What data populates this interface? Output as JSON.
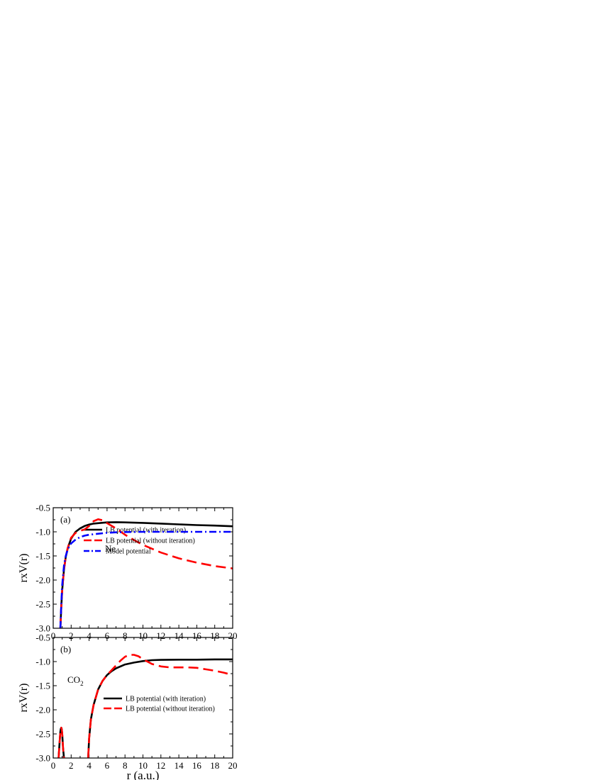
{
  "chart_data": [
    {
      "type": "line",
      "panel_label": "(a)",
      "annotation": "Ne",
      "xlabel": "",
      "ylabel": "rxV(r)",
      "xlim": [
        0,
        20
      ],
      "ylim": [
        -3.0,
        -0.5
      ],
      "xticks": [
        "0",
        "2",
        "4",
        "6",
        "8",
        "10",
        "12",
        "14",
        "16",
        "18",
        "20"
      ],
      "yticks": [
        "-0.5",
        "-1.0",
        "-1.5",
        "-2.0",
        "-2.5",
        "-3.0"
      ],
      "legend_position": "center-left",
      "series": [
        {
          "name": "LB potential (with iteration)",
          "color": "#000000",
          "style": "solid",
          "x": [
            0.8,
            0.9,
            1.0,
            1.2,
            1.4,
            1.6,
            1.8,
            2.0,
            2.5,
            3.0,
            3.5,
            4.0,
            4.5,
            5.0,
            6.0,
            7.0,
            8.0,
            10.0,
            12.0,
            14.0,
            16.0,
            18.0,
            20.0
          ],
          "y": [
            -3.0,
            -2.55,
            -2.2,
            -1.78,
            -1.52,
            -1.36,
            -1.24,
            -1.14,
            -1.0,
            -0.93,
            -0.88,
            -0.85,
            -0.83,
            -0.82,
            -0.805,
            -0.8,
            -0.805,
            -0.815,
            -0.83,
            -0.845,
            -0.86,
            -0.87,
            -0.885
          ]
        },
        {
          "name": "LB potential (without iteration)",
          "color": "#ff0000",
          "style": "dashed",
          "x": [
            0.8,
            0.9,
            1.0,
            1.2,
            1.4,
            1.6,
            1.8,
            2.0,
            2.5,
            3.0,
            3.5,
            4.0,
            4.5,
            5.0,
            5.5,
            6.0,
            7.0,
            8.0,
            9.0,
            10.0,
            12.0,
            14.0,
            16.0,
            18.0,
            20.0
          ],
          "y": [
            -3.0,
            -2.55,
            -2.2,
            -1.78,
            -1.52,
            -1.35,
            -1.22,
            -1.12,
            -1.02,
            -0.98,
            -0.95,
            -0.88,
            -0.78,
            -0.74,
            -0.76,
            -0.82,
            -0.93,
            -1.06,
            -1.17,
            -1.27,
            -1.43,
            -1.55,
            -1.64,
            -1.71,
            -1.76
          ]
        },
        {
          "name": "Model potential",
          "color": "#0000ff",
          "style": "dashdot",
          "x": [
            0.8,
            0.9,
            1.0,
            1.2,
            1.4,
            1.6,
            1.8,
            2.0,
            2.5,
            3.0,
            3.5,
            4.0,
            5.0,
            6.0,
            7.0,
            8.0,
            10.0,
            12.0,
            14.0,
            16.0,
            18.0,
            20.0
          ],
          "y": [
            -3.0,
            -2.5,
            -2.1,
            -1.7,
            -1.5,
            -1.38,
            -1.3,
            -1.24,
            -1.16,
            -1.11,
            -1.08,
            -1.06,
            -1.04,
            -1.02,
            -1.01,
            -1.005,
            -1.0,
            -1.0,
            -1.0,
            -1.0,
            -1.0,
            -1.0
          ]
        }
      ]
    },
    {
      "type": "line",
      "panel_label": "(b)",
      "annotation": "CO2",
      "annotation_sub": "2",
      "annotation_base": "CO",
      "xlabel": "r (a.u.)",
      "ylabel": "rxV(r)",
      "xlim": [
        0,
        20
      ],
      "ylim": [
        -3.0,
        -0.5
      ],
      "xticks": [
        "0",
        "2",
        "4",
        "6",
        "8",
        "10",
        "12",
        "14",
        "16",
        "18",
        "20"
      ],
      "yticks": [
        "-0.5",
        "-1.0",
        "-1.5",
        "-2.0",
        "-2.5",
        "-3.0"
      ],
      "legend_position": "center",
      "series": [
        {
          "name": "LB potential (with iteration)",
          "color": "#000000",
          "style": "solid",
          "segments": [
            {
              "x": [
                0.6,
                0.7,
                0.8,
                0.85,
                0.9,
                0.95,
                1.0,
                1.05,
                1.1,
                1.2
              ],
              "y": [
                -3.0,
                -2.7,
                -2.45,
                -2.39,
                -2.37,
                -2.4,
                -2.5,
                -2.65,
                -2.8,
                -3.0
              ]
            },
            {
              "x": [
                3.9,
                4.0,
                4.2,
                4.5,
                5.0,
                5.5,
                6.0,
                6.5,
                7.0,
                8.0,
                9.0,
                10.0,
                11.0,
                12.0,
                14.0,
                16.0,
                18.0,
                20.0
              ],
              "y": [
                -3.0,
                -2.6,
                -2.2,
                -1.9,
                -1.58,
                -1.4,
                -1.28,
                -1.2,
                -1.14,
                -1.06,
                -1.02,
                -0.99,
                -0.97,
                -0.965,
                -0.96,
                -0.96,
                -0.955,
                -0.955
              ]
            }
          ]
        },
        {
          "name": "LB potential (without iteration)",
          "color": "#ff0000",
          "style": "dashed",
          "segments": [
            {
              "x": [
                0.6,
                0.7,
                0.8,
                0.85,
                0.9,
                0.95,
                1.0,
                1.05,
                1.1,
                1.2
              ],
              "y": [
                -3.0,
                -2.7,
                -2.45,
                -2.39,
                -2.37,
                -2.4,
                -2.5,
                -2.65,
                -2.8,
                -3.0
              ]
            },
            {
              "x": [
                3.9,
                4.0,
                4.2,
                4.5,
                5.0,
                5.5,
                6.0,
                6.5,
                7.0,
                7.5,
                8.0,
                8.5,
                9.0,
                9.5,
                10.0,
                11.0,
                12.0,
                13.0,
                14.0,
                15.0,
                16.0,
                17.0,
                18.0,
                19.0,
                20.0
              ],
              "y": [
                -3.0,
                -2.6,
                -2.2,
                -1.9,
                -1.58,
                -1.4,
                -1.28,
                -1.18,
                -1.08,
                -0.98,
                -0.9,
                -0.86,
                -0.86,
                -0.89,
                -0.95,
                -1.05,
                -1.1,
                -1.12,
                -1.12,
                -1.12,
                -1.13,
                -1.16,
                -1.19,
                -1.23,
                -1.28
              ]
            }
          ]
        }
      ]
    }
  ]
}
